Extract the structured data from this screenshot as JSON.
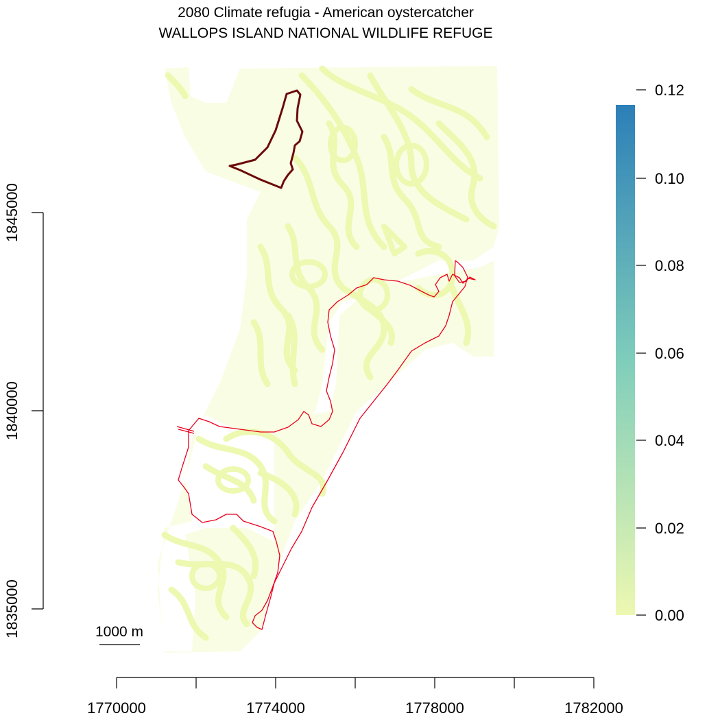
{
  "title": "2080 Climate refugia - American oystercatcher",
  "subtitle": "WALLOPS ISLAND NATIONAL WILDLIFE REFUGE",
  "scalebar_label": "1000 m",
  "colors": {
    "raster_low": "#edf8b1",
    "raster_mid": "#7fcdbb",
    "raster_high": "#2c7fb8",
    "refuge_boundary": "#e8001c",
    "north_parcel_boundary": "#6b0a0a"
  },
  "chart_data": {
    "type": "heatmap",
    "title": "2080 Climate refugia - American oystercatcher",
    "subtitle": "WALLOPS ISLAND NATIONAL WILDLIFE REFUGE",
    "x_ticks": [
      1770000,
      1772000,
      1774000,
      1776000,
      1778000,
      1780000,
      1782000
    ],
    "x_tick_labels": [
      "1770000",
      "1774000",
      "1778000",
      "1782000"
    ],
    "y_ticks": [
      1835000,
      1840000,
      1845000
    ],
    "y_tick_labels": [
      "1835000",
      "1840000",
      "1845000"
    ],
    "xlim": [
      1770000,
      1782000
    ],
    "colorbar": {
      "range": [
        0.0,
        0.12
      ],
      "ticks": [
        "0.00",
        "0.02",
        "0.04",
        "0.06",
        "0.08",
        "0.10",
        "0.12"
      ],
      "palette": [
        "#edf8b1",
        "#7fcdbb",
        "#2c7fb8"
      ]
    },
    "raster_value_observed": 0.0,
    "scale_bar_m": 1000
  }
}
